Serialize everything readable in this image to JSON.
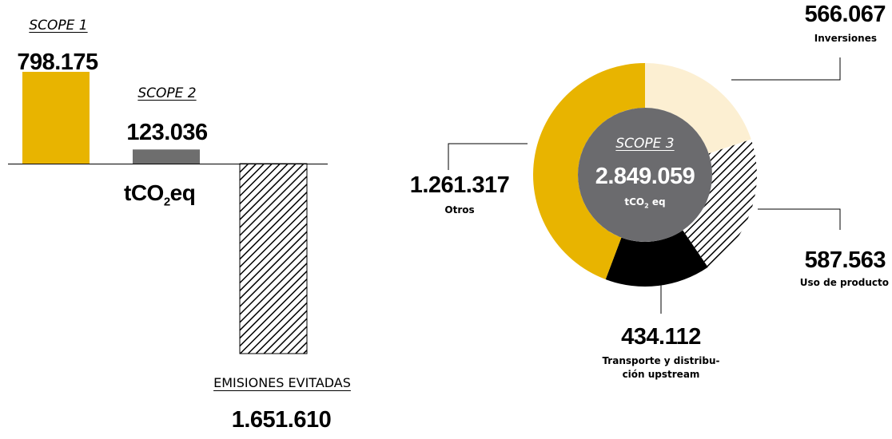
{
  "chart_data": [
    {
      "type": "bar",
      "unit_label": {
        "prefix": "tCO",
        "sub": "2",
        "suffix": "eq"
      },
      "bars": [
        {
          "label": "SCOPE 1",
          "value": 798175,
          "value_label": "798.175",
          "color": "#E8B400",
          "pattern": "solid"
        },
        {
          "label": "SCOPE 2",
          "value": 123036,
          "value_label": "123.036",
          "color": "#6E6E6E",
          "pattern": "solid"
        },
        {
          "label": "EMISIONES EVITADAS",
          "value": -1651610,
          "value_label": "1.651.610",
          "color": "#000000",
          "pattern": "hatched"
        }
      ]
    },
    {
      "type": "pie",
      "donut": true,
      "center": {
        "title": "SCOPE 3",
        "total_label": "2.849.059",
        "unit_prefix": "tCO",
        "unit_sub": "2",
        "unit_suffix": " eq",
        "color": "#6B6B6E"
      },
      "slices": [
        {
          "label": "Inversiones",
          "value": 566067,
          "value_label": "566.067",
          "color": "#FCEFD2",
          "pattern": "solid"
        },
        {
          "label": "Uso de producto",
          "value": 587563,
          "value_label": "587.563",
          "color": "#000000",
          "pattern": "hatched"
        },
        {
          "label_lines": [
            "Transporte y distribu-",
            "ción upstream"
          ],
          "value": 434112,
          "value_label": "434.112",
          "color": "#000000",
          "pattern": "solid"
        },
        {
          "label": "Otros",
          "value": 1261317,
          "value_label": "1.261.317",
          "color": "#E8B400",
          "pattern": "solid"
        }
      ]
    }
  ]
}
